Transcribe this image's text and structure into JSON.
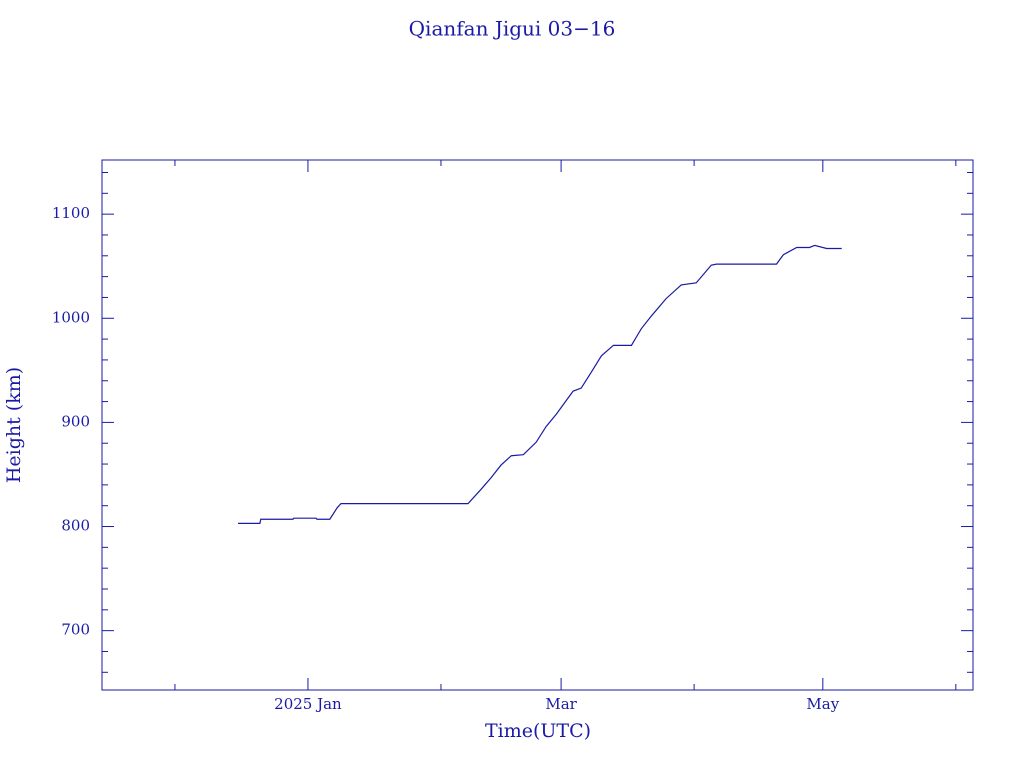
{
  "chart_data": {
    "type": "line",
    "title": "Qianfan Jigui 03−16",
    "x_label": "Time(UTC)",
    "y_label": "Height (km)",
    "color": "#1a1aa6",
    "xlim": [
      -48,
      155
    ],
    "ylim": [
      643,
      1152
    ],
    "xticks": [
      {
        "value": 0,
        "label": "2025 Jan"
      },
      {
        "value": 59,
        "label": "Mar"
      },
      {
        "value": 120,
        "label": "May"
      }
    ],
    "xminor": [
      -31,
      31,
      90,
      151
    ],
    "yticks": [
      700,
      800,
      900,
      1000,
      1100
    ],
    "yminor": [
      660,
      680,
      720,
      740,
      760,
      780,
      820,
      840,
      860,
      880,
      920,
      940,
      960,
      980,
      1020,
      1040,
      1060,
      1080,
      1120,
      1140
    ],
    "grid": false,
    "x": [
      -16.3,
      -11.2,
      -11,
      -3.5,
      -3.3,
      1.9,
      2.1,
      5.1,
      6.8,
      7.7,
      37.3,
      40.4,
      42.7,
      45,
      47.4,
      50.2,
      53.2,
      55.5,
      57.9,
      60.2,
      61.8,
      63.7,
      66,
      68.4,
      71.2,
      75.4,
      77.7,
      80,
      83.5,
      87,
      90.5,
      94,
      95.2,
      109.2,
      110.8,
      113.9,
      116.9,
      118.1,
      120.9,
      124.4
    ],
    "values": [
      803,
      803,
      807,
      807,
      808,
      808,
      807,
      807,
      818,
      822,
      822,
      836,
      847,
      859,
      868,
      869,
      881,
      896,
      908,
      921,
      930,
      933,
      948,
      964,
      974,
      974,
      990,
      1002,
      1019,
      1032,
      1034,
      1051,
      1052,
      1052,
      1061,
      1068,
      1068,
      1070,
      1067,
      1067
    ]
  }
}
